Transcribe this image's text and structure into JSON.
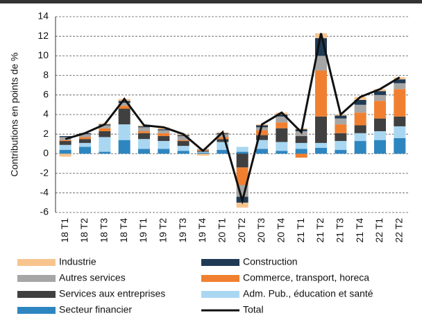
{
  "chart_data": {
    "type": "stacked_bar_line",
    "y_label": "Contributions en points de %",
    "categories": [
      "18 T1",
      "18 T2",
      "18 T3",
      "18 T4",
      "19 T1",
      "19 T2",
      "19 T3",
      "19 T4",
      "20 T1",
      "20 T2",
      "20 T3",
      "20 T4",
      "21 T1",
      "21 T2",
      "21 T3",
      "21 T4",
      "22 T1",
      "22 T2"
    ],
    "ylim": [
      -6,
      14
    ],
    "yticks": [
      -6,
      -4,
      -2,
      0,
      2,
      4,
      6,
      8,
      10,
      12,
      14
    ],
    "grid": true,
    "series": [
      {
        "name": "Secteur financier",
        "color": "#2e86c1",
        "values": [
          0.4,
          0.7,
          0.2,
          1.4,
          0.5,
          0.5,
          0.3,
          0.1,
          0.4,
          0.2,
          0.5,
          0.3,
          0.5,
          0.6,
          0.4,
          1.3,
          1.4,
          1.6
        ]
      },
      {
        "name": "Adm. Pub., éducation et santé",
        "color": "#a9d7f2",
        "values": [
          0.5,
          0.4,
          1.5,
          1.6,
          1.0,
          0.8,
          0.5,
          0.1,
          0.8,
          0.5,
          0.9,
          0.9,
          0.6,
          0.5,
          0.9,
          0.8,
          0.9,
          1.2
        ]
      },
      {
        "name": "Services aux entreprises",
        "color": "#404040",
        "values": [
          0.4,
          0.4,
          0.6,
          1.6,
          0.6,
          0.5,
          0.5,
          0.1,
          0.3,
          -1.4,
          0.5,
          1.4,
          0.7,
          2.7,
          0.8,
          0.8,
          1.3,
          1.0
        ]
      },
      {
        "name": "Commerce, transport, horeca",
        "color": "#f08030",
        "values": [
          0.1,
          0.2,
          0.3,
          0.3,
          0.2,
          0.3,
          0.1,
          0.1,
          0.2,
          -1.8,
          0.5,
          0.6,
          -0.4,
          4.7,
          0.9,
          1.3,
          1.8,
          2.8
        ]
      },
      {
        "name": "Autres services",
        "color": "#a6a6a6",
        "values": [
          0.3,
          0.3,
          0.3,
          0.3,
          0.4,
          0.3,
          0.4,
          0.1,
          0.3,
          -1.2,
          0.3,
          0.6,
          0.5,
          1.5,
          0.6,
          0.8,
          0.6,
          0.6
        ]
      },
      {
        "name": "Construction",
        "color": "#1f3a55",
        "values": [
          0.1,
          0.1,
          0.1,
          0.2,
          0.1,
          0.1,
          0.1,
          0.0,
          0.1,
          -0.6,
          0.2,
          0.2,
          0.2,
          1.8,
          0.3,
          0.5,
          0.4,
          0.4
        ]
      },
      {
        "name": "Industrie",
        "color": "#f8c48e",
        "values": [
          -0.3,
          0.0,
          0.1,
          0.2,
          0.1,
          0.2,
          0.1,
          -0.2,
          0.1,
          -0.5,
          0.1,
          0.2,
          0.1,
          0.5,
          0.1,
          0.3,
          0.2,
          0.2
        ]
      },
      {
        "name": "Total",
        "color": "#111111",
        "kind": "line",
        "values": [
          1.5,
          2.1,
          3.0,
          5.6,
          2.9,
          2.7,
          2.0,
          0.3,
          2.2,
          -4.8,
          3.0,
          4.2,
          2.2,
          12.3,
          4.0,
          5.8,
          6.6,
          7.8
        ]
      }
    ]
  }
}
